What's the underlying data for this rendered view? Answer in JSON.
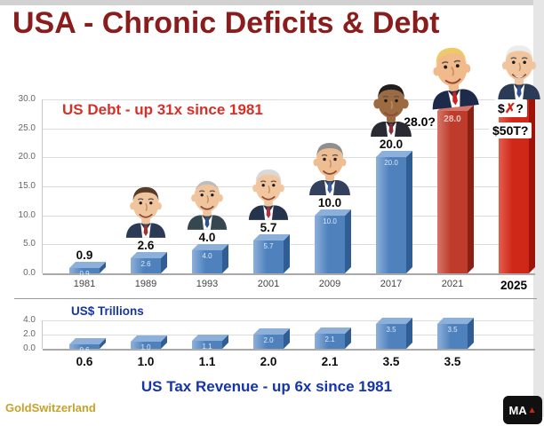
{
  "header": {
    "title": "USA - Chronic Deficits & Debt"
  },
  "theme": {
    "title_color": "#8b1c1c",
    "debt_accent": "#d92f27",
    "revenue_accent": "#1535a8",
    "blue_bar": "#4f81bd",
    "red_bar_2021": "#bf3b2b",
    "red_bar_2025": "#d02818",
    "gold": "#c8a22a"
  },
  "chart_data": [
    {
      "type": "bar",
      "title": "US Debt  -  up 31x since 1981",
      "categories": [
        "1981",
        "1989",
        "1993",
        "2001",
        "2009",
        "2017",
        "2021",
        "2025"
      ],
      "values": [
        0.9,
        2.6,
        4.0,
        5.7,
        10.0,
        20.0,
        28.0,
        null
      ],
      "bar_value_labels": [
        "0.9",
        "2.6",
        "4.0",
        "5.7",
        "10.0",
        "20.0"
      ],
      "inside_labels": [
        "0.9",
        "2.6",
        "4.0",
        "5.7",
        "10.0",
        "20.0",
        "28.0",
        ""
      ],
      "bar_colors": [
        "#4f81bd",
        "#4f81bd",
        "#4f81bd",
        "#4f81bd",
        "#4f81bd",
        "#4f81bd",
        "#bf3b2b",
        "#d02818"
      ],
      "ylim": [
        0,
        30
      ],
      "yticks": [
        "30.0",
        "25.0",
        "20.0",
        "15.0",
        "10.0",
        "5.0",
        "0.0"
      ],
      "grid": true,
      "legend": "none",
      "annotations": {
        "q2021": "28.0?",
        "x_prefix": "$",
        "x_mark": "✗",
        "x_suffix": "?",
        "projection_2025": "$50T?"
      },
      "presidents": [
        {
          "name": "Ronald Reagan",
          "skin": "#f0c49c",
          "hair": "#573d28",
          "suit": "#2b3a55",
          "tie": "#9c3333"
        },
        {
          "name": "George H. W. Bush",
          "skin": "#f0c49c",
          "hair": "#bdbdbd",
          "suit": "#37474f",
          "tie": "#31508c",
          "bald": true
        },
        {
          "name": "Bill Clinton",
          "skin": "#f2c7a0",
          "hair": "#d9d9d9",
          "suit": "#26334d",
          "tie": "#b03040"
        },
        {
          "name": "George W. Bush",
          "skin": "#eebd92",
          "hair": "#8f8f8f",
          "suit": "#33415e",
          "tie": "#3a5e9e"
        },
        {
          "name": "Barack Obama",
          "skin": "#9c6b42",
          "hair": "#1f1f1f",
          "suit": "#2a2a35",
          "tie": "#8a2f3c",
          "bigEars": true
        },
        {
          "name": "Donald Trump",
          "skin": "#f2b98a",
          "hair": "#eec96a",
          "suit": "#1d2a4a",
          "tie": "#d02020"
        },
        {
          "name": "Joe Biden",
          "skin": "#f0c49c",
          "hair": "#ececec",
          "suit": "#2b3a55",
          "tie": "#31508c",
          "grin": true
        }
      ]
    },
    {
      "type": "bar",
      "title": "US Tax Revenue  -  up 6x since 1981",
      "unit_label": "US$ Trillions",
      "categories": [
        "1981",
        "1989",
        "1993",
        "2001",
        "2009",
        "2017",
        "2021"
      ],
      "values": [
        0.6,
        1.0,
        1.1,
        2.0,
        2.1,
        3.5,
        3.5
      ],
      "value_labels": [
        "0.6",
        "1.0",
        "1.1",
        "2.0",
        "2.1",
        "3.5",
        "3.5"
      ],
      "inside_labels": [
        "0.6",
        "1.0",
        "1.1",
        "2.0",
        "2.1",
        "3.5",
        "3.5"
      ],
      "yticks": [
        "4.0",
        "2.0",
        "0.0"
      ],
      "ylim": [
        0,
        4
      ],
      "grid": true,
      "legend": "none"
    }
  ],
  "footer": {
    "watermark": "GoldSwitzerland",
    "logo_text": "MA",
    "logo_mark": "▲"
  }
}
